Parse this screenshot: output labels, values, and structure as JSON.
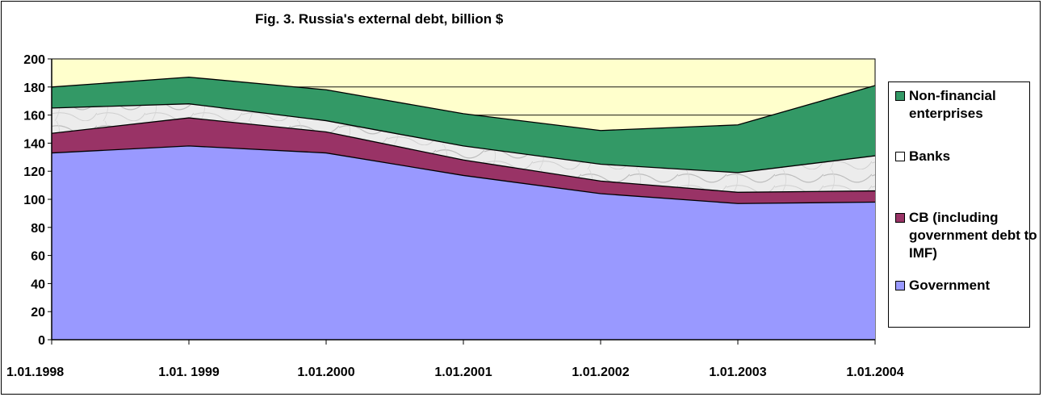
{
  "chart_data": {
    "type": "area",
    "stacked": true,
    "title": "Fig. 3. Russia's external debt, billion $",
    "xlabel": "",
    "ylabel": "",
    "ylim": [
      0,
      200
    ],
    "yticks": [
      "0",
      "20",
      "40",
      "60",
      "80",
      "100",
      "120",
      "140",
      "160",
      "180",
      "200"
    ],
    "categories": [
      "1.01.1998",
      "1.01. 1999",
      "1.01.2000",
      "1.01.2001",
      "1.01.2002",
      "1.01.2003",
      "1.01.2004"
    ],
    "series": [
      {
        "name": "Government",
        "values": [
          133,
          138,
          133,
          117,
          104,
          97,
          98
        ],
        "color": "#9999ff"
      },
      {
        "name": "CB (including government debt to IMF)",
        "values": [
          14,
          20,
          15,
          11,
          9,
          8,
          8
        ],
        "color": "#993366"
      },
      {
        "name": "Banks",
        "values": [
          18,
          10,
          8,
          10,
          12,
          14,
          25
        ],
        "color": "#e8e8e8"
      },
      {
        "name": "Non-financial enterprises",
        "values": [
          15,
          19,
          22,
          23,
          24,
          34,
          50
        ],
        "color": "#339966"
      }
    ],
    "plot_background": "#ffffcc",
    "grid": "horizontal",
    "legend_position": "right"
  }
}
